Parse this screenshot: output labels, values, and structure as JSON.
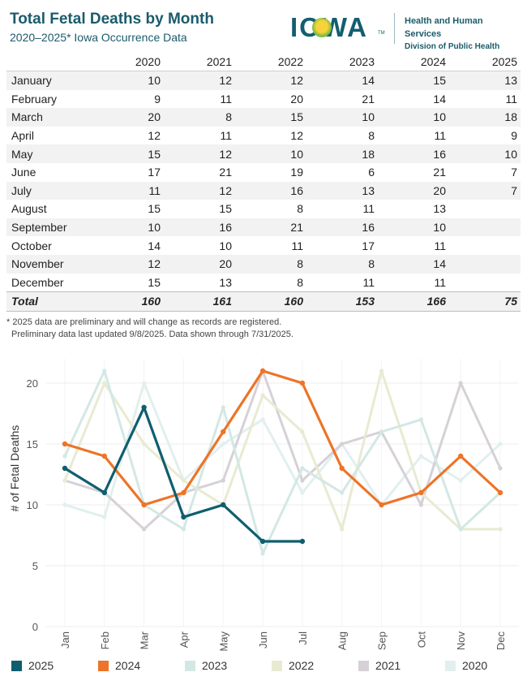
{
  "header": {
    "title": "Total Fetal Deaths by Month",
    "subtitle": "2020–2025* Iowa Occurrence Data",
    "logo_text": "IOWA",
    "logo_tm": "TM",
    "org_line1": "Health and Human Services",
    "org_line2": "Division of Public Health"
  },
  "table": {
    "columns": [
      "2020",
      "2021",
      "2022",
      "2023",
      "2024",
      "2025"
    ],
    "rows": [
      {
        "month": "January",
        "values": [
          "10",
          "12",
          "12",
          "14",
          "15",
          "13"
        ]
      },
      {
        "month": "February",
        "values": [
          "9",
          "11",
          "20",
          "21",
          "14",
          "11"
        ]
      },
      {
        "month": "March",
        "values": [
          "20",
          "8",
          "15",
          "10",
          "10",
          "18"
        ]
      },
      {
        "month": "April",
        "values": [
          "12",
          "11",
          "12",
          "8",
          "11",
          "9"
        ]
      },
      {
        "month": "May",
        "values": [
          "15",
          "12",
          "10",
          "18",
          "16",
          "10"
        ]
      },
      {
        "month": "June",
        "values": [
          "17",
          "21",
          "19",
          "6",
          "21",
          "7"
        ]
      },
      {
        "month": "July",
        "values": [
          "11",
          "12",
          "16",
          "13",
          "20",
          "7"
        ]
      },
      {
        "month": "August",
        "values": [
          "15",
          "15",
          "8",
          "11",
          "13",
          ""
        ]
      },
      {
        "month": "September",
        "values": [
          "10",
          "16",
          "21",
          "16",
          "10",
          ""
        ]
      },
      {
        "month": "October",
        "values": [
          "14",
          "10",
          "11",
          "17",
          "11",
          ""
        ]
      },
      {
        "month": "November",
        "values": [
          "12",
          "20",
          "8",
          "8",
          "14",
          ""
        ]
      },
      {
        "month": "December",
        "values": [
          "15",
          "13",
          "8",
          "11",
          "11",
          ""
        ]
      }
    ],
    "total": {
      "label": "Total",
      "values": [
        "160",
        "161",
        "160",
        "153",
        "166",
        "75"
      ]
    }
  },
  "notes": {
    "line1": "* 2025 data are preliminary and will change as records are registered.",
    "line2": "Preliminary data last updated 9/8/2025. Data shown through 7/31/2025."
  },
  "chart_data": {
    "type": "line",
    "title": "",
    "xlabel": "",
    "ylabel": "# of Fetal Deaths",
    "categories": [
      "Jan",
      "Feb",
      "Mar",
      "Apr",
      "May",
      "Jun",
      "Jul",
      "Aug",
      "Sep",
      "Oct",
      "Nov",
      "Dec"
    ],
    "ylim": [
      0,
      22
    ],
    "yticks": [
      0,
      5,
      10,
      15,
      20
    ],
    "grid": true,
    "legend_position": "bottom",
    "series": [
      {
        "name": "2020",
        "color": "#e2efef",
        "values": [
          10,
          9,
          20,
          12,
          15,
          17,
          11,
          15,
          10,
          14,
          12,
          15
        ]
      },
      {
        "name": "2021",
        "color": "#d6d1d6",
        "values": [
          12,
          11,
          8,
          11,
          12,
          21,
          12,
          15,
          16,
          10,
          20,
          13
        ]
      },
      {
        "name": "2022",
        "color": "#e8ebd2",
        "values": [
          12,
          20,
          15,
          12,
          10,
          19,
          16,
          8,
          21,
          11,
          8,
          8
        ]
      },
      {
        "name": "2023",
        "color": "#d3e8e4",
        "values": [
          14,
          21,
          10,
          8,
          18,
          6,
          13,
          11,
          16,
          17,
          8,
          11
        ]
      },
      {
        "name": "2024",
        "color": "#ed7428",
        "values": [
          15,
          14,
          10,
          11,
          16,
          21,
          20,
          13,
          10,
          11,
          14,
          11
        ]
      },
      {
        "name": "2025",
        "color": "#0f5e6f",
        "values": [
          13,
          11,
          18,
          9,
          10,
          7,
          7,
          null,
          null,
          null,
          null,
          null
        ]
      }
    ],
    "legend_order": [
      "2025",
      "2024",
      "2023",
      "2022",
      "2021",
      "2020"
    ]
  }
}
